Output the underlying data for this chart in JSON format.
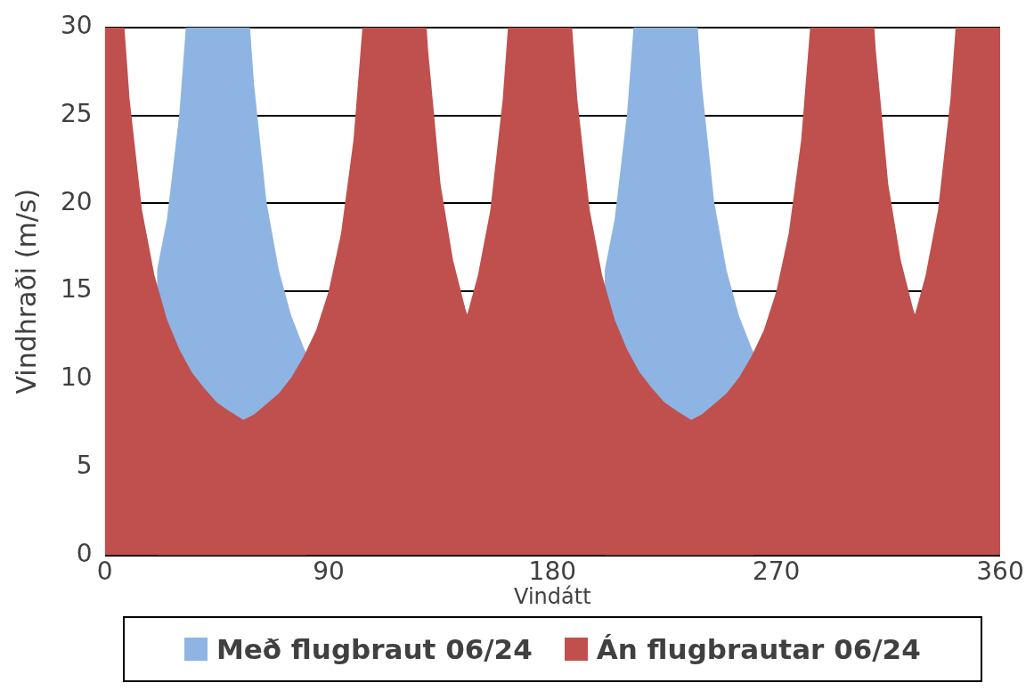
{
  "chart_data": {
    "type": "area",
    "xlabel": "Vindátt",
    "ylabel": "Vindhraði (m/s)",
    "xlim": [
      0,
      360
    ],
    "xticks": [
      0,
      90,
      180,
      270,
      360
    ],
    "ylim": [
      0,
      30
    ],
    "yticks": [
      0,
      5,
      10,
      15,
      20,
      25,
      30
    ],
    "grid": "y",
    "legend": "bottom",
    "marker": "none",
    "series": [
      {
        "name": "Með flugbraut 06/24",
        "color": "#8eb4e3",
        "x": [
          21,
          25,
          30,
          32.6,
          58.4,
          60,
          65,
          70,
          75,
          80,
          81,
          140,
          201,
          205,
          210,
          212.6,
          238.4,
          240,
          245,
          250,
          255,
          260,
          261
        ],
        "values": [
          16.2,
          19.1,
          25.1,
          30,
          30,
          26.8,
          20.1,
          16.2,
          13.6,
          11.8,
          11.5,
          null,
          16.2,
          19.1,
          25.1,
          30,
          30,
          26.8,
          20.1,
          16.2,
          13.6,
          11.8,
          11.5
        ]
      },
      {
        "name": "Án flugbrautar 06/24",
        "color": "#c0504d",
        "x": [
          0,
          5,
          7.9,
          10,
          15,
          20,
          25,
          30,
          35,
          40,
          45,
          50,
          55.75,
          60,
          65,
          70,
          75,
          80,
          85,
          90,
          95,
          100,
          103.6,
          129.4,
          130,
          135,
          140,
          145,
          145.75,
          150,
          155,
          160,
          162.1,
          180,
          185,
          187.9,
          190,
          195,
          200,
          205,
          210,
          215,
          220,
          225,
          230,
          235.75,
          240,
          245,
          250,
          255,
          260,
          265,
          270,
          275,
          280,
          283.6,
          309.4,
          310,
          315,
          320,
          325,
          325.75,
          330,
          335,
          340,
          342.1,
          360
        ],
        "values": [
          30,
          30,
          30,
          25.9,
          19.6,
          15.9,
          13.4,
          11.7,
          10.4,
          9.5,
          8.7,
          8.2,
          7.7,
          8.0,
          8.6,
          9.2,
          10.1,
          11.3,
          12.8,
          15.0,
          18.3,
          23.6,
          30,
          30,
          28.7,
          21.1,
          16.8,
          14.0,
          13.7,
          15.9,
          19.6,
          25.9,
          30,
          30,
          30,
          30,
          25.9,
          19.6,
          15.9,
          13.4,
          11.7,
          10.4,
          9.5,
          8.7,
          8.2,
          7.7,
          8.0,
          8.6,
          9.2,
          10.1,
          11.3,
          12.8,
          15.0,
          18.3,
          23.6,
          30,
          30,
          28.7,
          21.1,
          16.8,
          14.0,
          13.7,
          15.9,
          19.6,
          25.9,
          30,
          30
        ]
      }
    ]
  }
}
